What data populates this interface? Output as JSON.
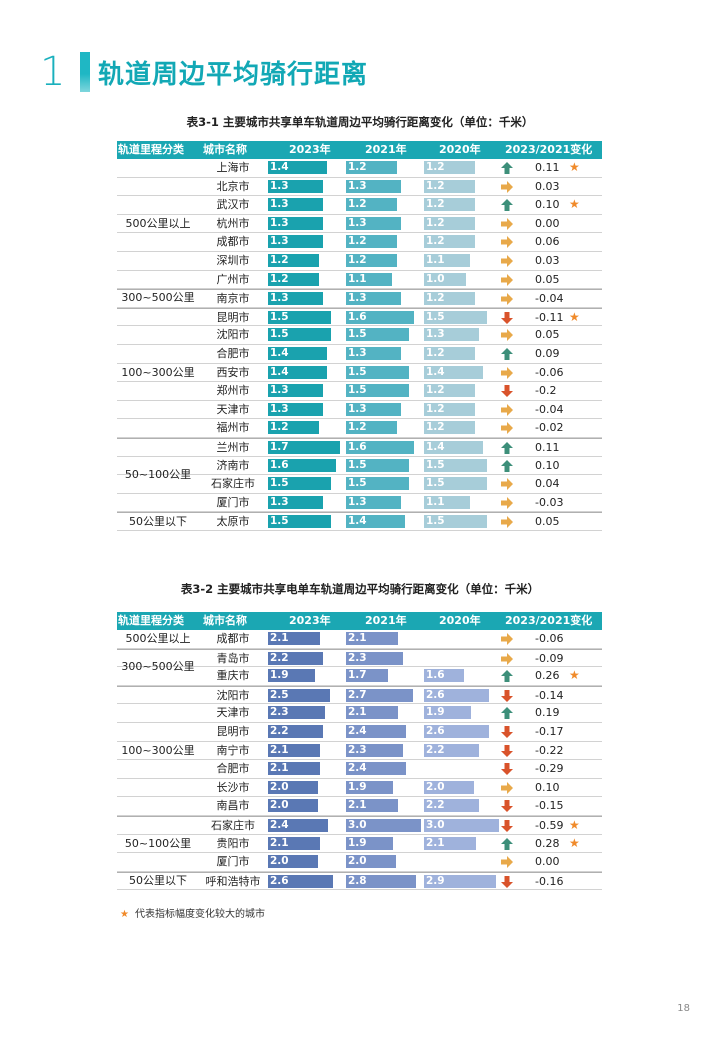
{
  "section": {
    "number": "1",
    "title": "轨道周边平均骑行距离"
  },
  "colors": {
    "accent": "#1ba7b3",
    "star": "#f08a2a",
    "up": "#3d8f7a",
    "down": "#d9532b",
    "flat": "#e8a94a"
  },
  "table1": {
    "title": "表3-1 主要城市共享单车轨道周边平均骑行距离变化（单位：千米）",
    "headers": [
      "轨道里程分类",
      "城市名称",
      "2023年",
      "2021年",
      "2020年",
      "2023/2021变化"
    ],
    "bar_colors": [
      "#1aa2ae",
      "#53b3c3",
      "#a7cdd9"
    ],
    "max": 1.8,
    "groups": [
      {
        "label": "500公里以上",
        "rows": [
          {
            "city": "上海市",
            "v": [
              1.4,
              1.2,
              1.2
            ],
            "dir": "up",
            "chg": "0.11",
            "star": true
          },
          {
            "city": "北京市",
            "v": [
              1.3,
              1.3,
              1.2
            ],
            "dir": "flat",
            "chg": "0.03",
            "star": false
          },
          {
            "city": "武汉市",
            "v": [
              1.3,
              1.2,
              1.2
            ],
            "dir": "up",
            "chg": "0.10",
            "star": true
          },
          {
            "city": "杭州市",
            "v": [
              1.3,
              1.3,
              1.2
            ],
            "dir": "flat",
            "chg": "0.00",
            "star": false
          },
          {
            "city": "成都市",
            "v": [
              1.3,
              1.2,
              1.2
            ],
            "dir": "flat",
            "chg": "0.06",
            "star": false
          },
          {
            "city": "深圳市",
            "v": [
              1.2,
              1.2,
              1.1
            ],
            "dir": "flat",
            "chg": "0.03",
            "star": false
          },
          {
            "city": "广州市",
            "v": [
              1.2,
              1.1,
              1.0
            ],
            "dir": "flat",
            "chg": "0.05",
            "star": false
          }
        ]
      },
      {
        "label": "300~500公里",
        "rows": [
          {
            "city": "南京市",
            "v": [
              1.3,
              1.3,
              1.2
            ],
            "dir": "flat",
            "chg": "-0.04",
            "star": false
          }
        ]
      },
      {
        "label": "100~300公里",
        "rows": [
          {
            "city": "昆明市",
            "v": [
              1.5,
              1.6,
              1.5
            ],
            "dir": "down",
            "chg": "-0.11",
            "star": true
          },
          {
            "city": "沈阳市",
            "v": [
              1.5,
              1.5,
              1.3
            ],
            "dir": "flat",
            "chg": "0.05",
            "star": false
          },
          {
            "city": "合肥市",
            "v": [
              1.4,
              1.3,
              1.2
            ],
            "dir": "up",
            "chg": "0.09",
            "star": false
          },
          {
            "city": "西安市",
            "v": [
              1.4,
              1.5,
              1.4
            ],
            "dir": "flat",
            "chg": "-0.06",
            "star": false
          },
          {
            "city": "郑州市",
            "v": [
              1.3,
              1.5,
              1.2
            ],
            "dir": "down",
            "chg": "-0.2",
            "star": false
          },
          {
            "city": "天津市",
            "v": [
              1.3,
              1.3,
              1.2
            ],
            "dir": "flat",
            "chg": "-0.04",
            "star": false
          },
          {
            "city": "福州市",
            "v": [
              1.2,
              1.2,
              1.2
            ],
            "dir": "flat",
            "chg": "-0.02",
            "star": false
          }
        ]
      },
      {
        "label": "50~100公里",
        "rows": [
          {
            "city": "兰州市",
            "v": [
              1.7,
              1.6,
              1.4
            ],
            "dir": "up",
            "chg": "0.11",
            "star": false
          },
          {
            "city": "济南市",
            "v": [
              1.6,
              1.5,
              1.5
            ],
            "dir": "up",
            "chg": "0.10",
            "star": false
          },
          {
            "city": "石家庄市",
            "v": [
              1.5,
              1.5,
              1.5
            ],
            "dir": "flat",
            "chg": "0.04",
            "star": false
          },
          {
            "city": "厦门市",
            "v": [
              1.3,
              1.3,
              1.1
            ],
            "dir": "flat",
            "chg": "-0.03",
            "star": false
          }
        ]
      },
      {
        "label": "50公里以下",
        "rows": [
          {
            "city": "太原市",
            "v": [
              1.5,
              1.4,
              1.5
            ],
            "dir": "flat",
            "chg": "0.05",
            "star": false
          }
        ]
      }
    ]
  },
  "table2": {
    "title": "表3-2 主要城市共享电单车轨道周边平均骑行距离变化（单位：千米）",
    "headers": [
      "轨道里程分类",
      "城市名称",
      "2023年",
      "2021年",
      "2020年",
      "2023/2021变化"
    ],
    "bar_colors": [
      "#5a78b4",
      "#7b93c8",
      "#9fb2dc"
    ],
    "max": 3.05,
    "groups": [
      {
        "label": "500公里以上",
        "rows": [
          {
            "city": "成都市",
            "v": [
              2.1,
              2.1,
              null
            ],
            "dir": "flat",
            "chg": "-0.06",
            "star": false
          }
        ]
      },
      {
        "label": "300~500公里",
        "rows": [
          {
            "city": "青岛市",
            "v": [
              2.2,
              2.3,
              null
            ],
            "dir": "flat",
            "chg": "-0.09",
            "star": false
          },
          {
            "city": "重庆市",
            "v": [
              1.9,
              1.7,
              1.6
            ],
            "dir": "up",
            "chg": "0.26",
            "star": true
          }
        ]
      },
      {
        "label": "100~300公里",
        "rows": [
          {
            "city": "沈阳市",
            "v": [
              2.5,
              2.7,
              2.6
            ],
            "dir": "down",
            "chg": "-0.14",
            "star": false
          },
          {
            "city": "天津市",
            "v": [
              2.3,
              2.1,
              1.9
            ],
            "dir": "up",
            "chg": "0.19",
            "star": false
          },
          {
            "city": "昆明市",
            "v": [
              2.2,
              2.4,
              2.6
            ],
            "dir": "down",
            "chg": "-0.17",
            "star": false
          },
          {
            "city": "南宁市",
            "v": [
              2.1,
              2.3,
              2.2
            ],
            "dir": "down",
            "chg": "-0.22",
            "star": false
          },
          {
            "city": "合肥市",
            "v": [
              2.1,
              2.4,
              null
            ],
            "dir": "down",
            "chg": "-0.29",
            "star": false
          },
          {
            "city": "长沙市",
            "v": [
              2.0,
              1.9,
              2.0
            ],
            "dir": "flat",
            "chg": "0.10",
            "star": false
          },
          {
            "city": "南昌市",
            "v": [
              2.0,
              2.1,
              2.2
            ],
            "dir": "down",
            "chg": "-0.15",
            "star": false
          }
        ]
      },
      {
        "label": "50~100公里",
        "rows": [
          {
            "city": "石家庄市",
            "v": [
              2.4,
              3.0,
              3.0
            ],
            "dir": "down",
            "chg": "-0.59",
            "star": true
          },
          {
            "city": "贵阳市",
            "v": [
              2.1,
              1.9,
              2.1
            ],
            "dir": "up",
            "chg": "0.28",
            "star": true
          },
          {
            "city": "厦门市",
            "v": [
              2.0,
              2.0,
              null
            ],
            "dir": "flat",
            "chg": "0.00",
            "star": false
          }
        ]
      },
      {
        "label": "50公里以下",
        "rows": [
          {
            "city": "呼和浩特市",
            "v": [
              2.6,
              2.8,
              2.9
            ],
            "dir": "down",
            "chg": "-0.16",
            "star": false
          }
        ]
      }
    ]
  },
  "legend": {
    "star": "★",
    "text": "代表指标幅度变化较大的城市"
  },
  "page_number": "18"
}
